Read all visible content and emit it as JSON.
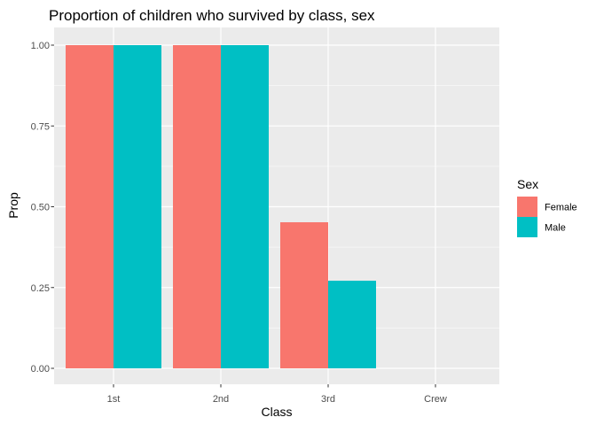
{
  "chart_data": {
    "type": "bar",
    "title": "Proportion of children who survived by class, sex",
    "xlabel": "Class",
    "ylabel": "Prop",
    "categories": [
      "1st",
      "2nd",
      "3rd",
      "Crew"
    ],
    "series": [
      {
        "name": "Female",
        "values": [
          1.0,
          1.0,
          0.452,
          null
        ],
        "color": "#F8766D"
      },
      {
        "name": "Male",
        "values": [
          1.0,
          1.0,
          0.271,
          null
        ],
        "color": "#00BFC4"
      }
    ],
    "ylim": [
      0,
      1.0
    ],
    "yticks": [
      "0.00",
      "0.25",
      "0.50",
      "0.75",
      "1.00"
    ],
    "grid": true,
    "legend": {
      "title": "Sex",
      "position": "right"
    }
  }
}
